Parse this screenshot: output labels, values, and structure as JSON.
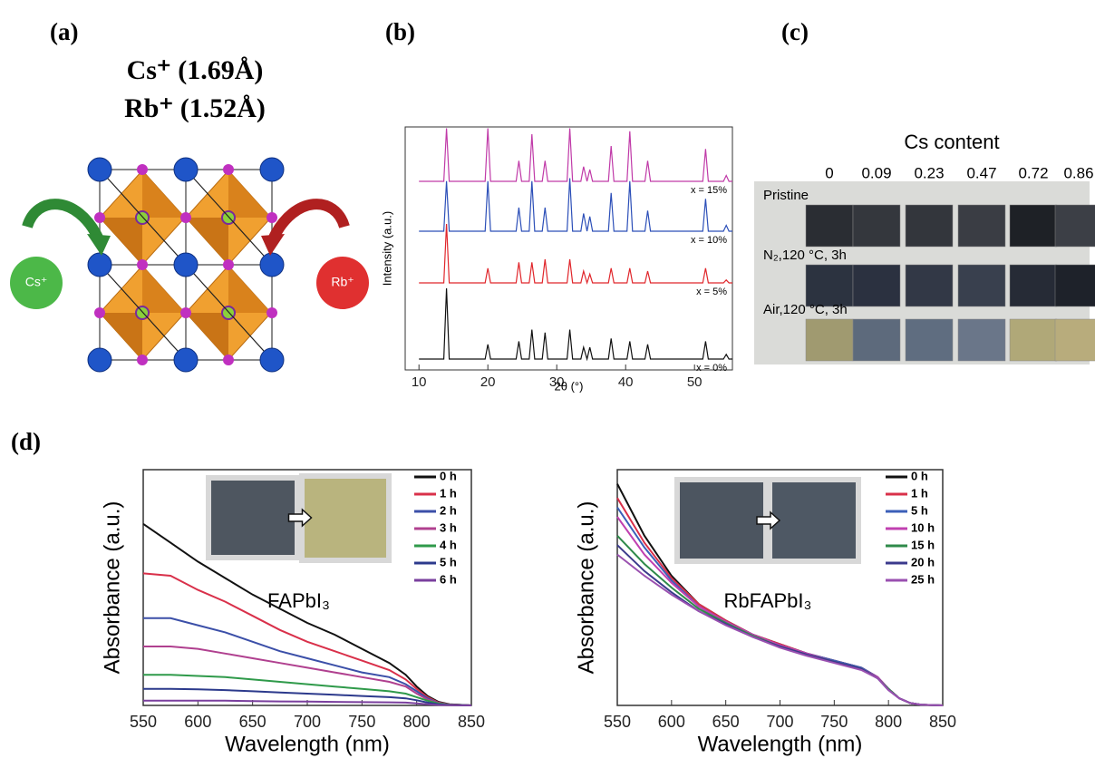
{
  "panel_labels": [
    "(a)",
    "(b)",
    "(c)",
    "(d)"
  ],
  "panel_a": {
    "ions": [
      "Cs⁺ (1.69Å)",
      "Rb⁺ (1.52Å)"
    ],
    "cs_label": "Cs⁺",
    "rb_label": "Rb⁺"
  },
  "panel_c": {
    "title": "Cs content",
    "columns": [
      "0",
      "0.09",
      "0.23",
      "0.47",
      "0.72",
      "0.86"
    ],
    "rows": [
      "Pristine",
      "N₂,120 °C, 3h",
      "Air,120 °C, 3h"
    ]
  },
  "chart_data": [
    {
      "type": "line",
      "x_label": "2θ (°)",
      "y_label": "Intensity (a.u.)",
      "xlim": [
        8,
        55.5
      ],
      "xticks": [
        10,
        20,
        30,
        40,
        50
      ],
      "x": [
        10,
        13.6,
        14.0,
        14.4,
        19.6,
        20.0,
        20.4,
        24.1,
        24.5,
        24.9,
        26.0,
        26.4,
        26.8,
        27.9,
        28.3,
        28.7,
        31.5,
        31.9,
        32.3,
        33.5,
        33.9,
        34.4,
        34.8,
        35.2,
        37.5,
        37.9,
        38.3,
        40.2,
        40.6,
        41.0,
        42.8,
        43.2,
        43.6,
        51.2,
        51.6,
        52.0,
        54.2,
        54.6,
        55.0,
        55.5
      ],
      "series": [
        {
          "name": "x = 0%",
          "color": "#111111",
          "values": [
            0,
            0,
            1.2,
            0,
            0,
            0.25,
            0,
            0,
            0.3,
            0,
            0,
            0.5,
            0,
            0,
            0.45,
            0,
            0,
            0.5,
            0,
            0,
            0.2,
            0,
            0.2,
            0,
            0,
            0.35,
            0,
            0,
            0.3,
            0,
            0,
            0.25,
            0,
            0,
            0.3,
            0,
            0,
            0.08,
            0,
            0
          ]
        },
        {
          "name": "x = 5%",
          "color": "#e0262b",
          "values": [
            0,
            0,
            1.0,
            0,
            0,
            0.25,
            0,
            0,
            0.35,
            0,
            0,
            0.35,
            0,
            0,
            0.4,
            0,
            0,
            0.4,
            0,
            0,
            0.2,
            0,
            0.15,
            0,
            0,
            0.25,
            0,
            0,
            0.25,
            0,
            0,
            0.2,
            0,
            0,
            0.25,
            0,
            0,
            0.05,
            0,
            0
          ]
        },
        {
          "name": "x = 10%",
          "color": "#2c4fb8",
          "values": [
            0,
            0,
            0.85,
            0,
            0,
            0.85,
            0,
            0,
            0.4,
            0,
            0,
            0.85,
            0,
            0,
            0.4,
            0,
            0,
            0.9,
            0,
            0,
            0.3,
            0,
            0.25,
            0,
            0,
            0.65,
            0,
            0,
            0.85,
            0,
            0,
            0.35,
            0,
            0,
            0.55,
            0,
            0,
            0.1,
            0,
            0
          ]
        },
        {
          "name": "x = 15%",
          "color": "#c03aa8",
          "values": [
            0,
            0,
            0.9,
            0,
            0,
            0.9,
            0,
            0,
            0.35,
            0,
            0,
            0.8,
            0,
            0,
            0.35,
            0,
            0,
            0.9,
            0,
            0,
            0.25,
            0,
            0.2,
            0,
            0,
            0.6,
            0,
            0,
            0.85,
            0,
            0,
            0.35,
            0,
            0,
            0.55,
            0,
            0,
            0.1,
            0,
            0
          ]
        }
      ]
    },
    {
      "type": "line",
      "x_label": "Wavelength (nm)",
      "y_label": "Absorbance (a.u.)",
      "annotation": "FAPbI₃",
      "legend": "upper right",
      "xlim": [
        550,
        850
      ],
      "xticks": [
        550,
        600,
        650,
        700,
        750,
        800,
        850
      ],
      "ylim": [
        0,
        1
      ],
      "x": [
        550,
        575,
        600,
        625,
        650,
        675,
        700,
        725,
        750,
        775,
        790,
        800,
        810,
        820,
        830,
        850
      ],
      "series": [
        {
          "name": "0 h",
          "color": "#111111",
          "values": [
            0.77,
            0.69,
            0.61,
            0.54,
            0.47,
            0.41,
            0.35,
            0.3,
            0.24,
            0.18,
            0.13,
            0.08,
            0.04,
            0.015,
            0.005,
            0
          ]
        },
        {
          "name": "1 h",
          "color": "#d9304a",
          "values": [
            0.56,
            0.55,
            0.49,
            0.44,
            0.38,
            0.32,
            0.27,
            0.23,
            0.19,
            0.15,
            0.11,
            0.07,
            0.035,
            0.012,
            0.004,
            0
          ]
        },
        {
          "name": "2 h",
          "color": "#3b4fa8",
          "values": [
            0.37,
            0.37,
            0.34,
            0.31,
            0.27,
            0.23,
            0.2,
            0.17,
            0.14,
            0.12,
            0.09,
            0.06,
            0.03,
            0.01,
            0.003,
            0
          ]
        },
        {
          "name": "3 h",
          "color": "#b0408f",
          "values": [
            0.25,
            0.25,
            0.24,
            0.22,
            0.2,
            0.18,
            0.16,
            0.14,
            0.12,
            0.1,
            0.08,
            0.05,
            0.025,
            0.01,
            0.003,
            0
          ]
        },
        {
          "name": "4 h",
          "color": "#2f9a4a",
          "values": [
            0.13,
            0.13,
            0.125,
            0.12,
            0.11,
            0.1,
            0.09,
            0.08,
            0.07,
            0.06,
            0.05,
            0.035,
            0.02,
            0.008,
            0.003,
            0
          ]
        },
        {
          "name": "5 h",
          "color": "#2c3a8c",
          "values": [
            0.07,
            0.07,
            0.068,
            0.065,
            0.06,
            0.055,
            0.05,
            0.045,
            0.04,
            0.035,
            0.03,
            0.022,
            0.012,
            0.005,
            0.002,
            0
          ]
        },
        {
          "name": "6 h",
          "color": "#7a3f9e",
          "values": [
            0.02,
            0.02,
            0.02,
            0.02,
            0.018,
            0.017,
            0.016,
            0.015,
            0.014,
            0.013,
            0.012,
            0.009,
            0.005,
            0.002,
            0.001,
            0
          ]
        }
      ]
    },
    {
      "type": "line",
      "x_label": "Wavelength (nm)",
      "y_label": "Absorbance (a.u.)",
      "annotation": "RbFAPbI₃",
      "legend": "upper right",
      "xlim": [
        550,
        850
      ],
      "xticks": [
        550,
        600,
        650,
        700,
        750,
        800,
        850
      ],
      "ylim": [
        0,
        1
      ],
      "x": [
        550,
        575,
        600,
        625,
        650,
        675,
        700,
        725,
        750,
        775,
        790,
        800,
        810,
        820,
        830,
        850
      ],
      "series": [
        {
          "name": "0 h",
          "color": "#111111",
          "values": [
            0.94,
            0.72,
            0.55,
            0.43,
            0.36,
            0.3,
            0.26,
            0.22,
            0.19,
            0.16,
            0.12,
            0.07,
            0.03,
            0.01,
            0.003,
            0
          ]
        },
        {
          "name": "1 h",
          "color": "#d9304a",
          "values": [
            0.88,
            0.69,
            0.54,
            0.43,
            0.36,
            0.3,
            0.26,
            0.22,
            0.19,
            0.16,
            0.12,
            0.07,
            0.03,
            0.01,
            0.003,
            0
          ]
        },
        {
          "name": "5 h",
          "color": "#3b5fb8",
          "values": [
            0.84,
            0.67,
            0.53,
            0.42,
            0.355,
            0.3,
            0.255,
            0.22,
            0.19,
            0.16,
            0.12,
            0.07,
            0.03,
            0.01,
            0.003,
            0
          ]
        },
        {
          "name": "10 h",
          "color": "#c040b0",
          "values": [
            0.8,
            0.64,
            0.52,
            0.42,
            0.355,
            0.3,
            0.255,
            0.22,
            0.185,
            0.155,
            0.12,
            0.07,
            0.03,
            0.01,
            0.003,
            0
          ]
        },
        {
          "name": "15 h",
          "color": "#2f8a4a",
          "values": [
            0.72,
            0.6,
            0.5,
            0.41,
            0.35,
            0.295,
            0.25,
            0.215,
            0.185,
            0.155,
            0.115,
            0.07,
            0.03,
            0.01,
            0.003,
            0
          ]
        },
        {
          "name": "20 h",
          "color": "#3b3a8c",
          "values": [
            0.68,
            0.57,
            0.48,
            0.4,
            0.345,
            0.29,
            0.25,
            0.215,
            0.185,
            0.155,
            0.115,
            0.065,
            0.03,
            0.01,
            0.003,
            0
          ]
        },
        {
          "name": "25 h",
          "color": "#9a50b0",
          "values": [
            0.64,
            0.55,
            0.47,
            0.4,
            0.34,
            0.29,
            0.245,
            0.21,
            0.18,
            0.15,
            0.115,
            0.065,
            0.03,
            0.01,
            0.003,
            0
          ]
        }
      ]
    }
  ]
}
